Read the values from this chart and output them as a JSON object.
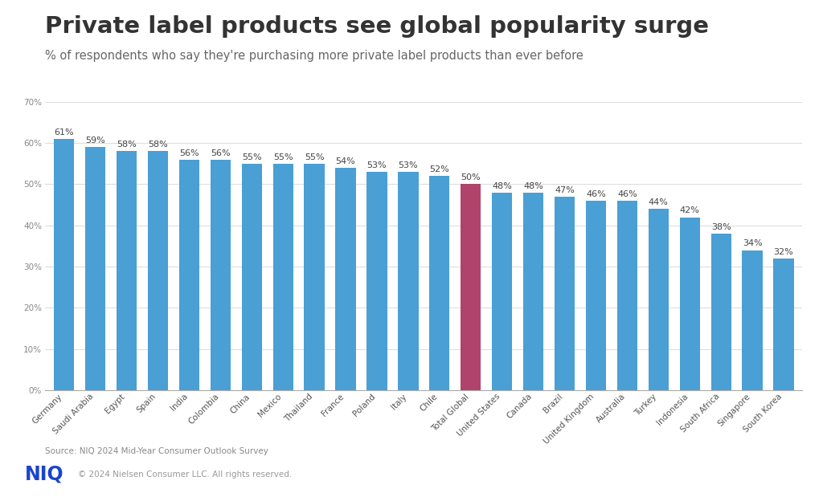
{
  "title": "Private label products see global popularity surge",
  "subtitle": "% of respondents who say they're purchasing more private label products than ever before",
  "source": "Source: NIQ 2024 Mid-Year Consumer Outlook Survey",
  "footer": "© 2024 Nielsen Consumer LLC. All rights reserved.",
  "categories": [
    "Germany",
    "Saudi Arabia",
    "Egypt",
    "Spain",
    "India",
    "Colombia",
    "China",
    "Mexico",
    "Thailand",
    "France",
    "Poland",
    "Italy",
    "Chile",
    "Total Global",
    "United States",
    "Canada",
    "Brazil",
    "United Kingdom",
    "Australia",
    "Turkey",
    "Indonesia",
    "South Africa",
    "Singapore",
    "South Korea"
  ],
  "values": [
    61,
    59,
    58,
    58,
    56,
    56,
    55,
    55,
    55,
    54,
    53,
    53,
    52,
    50,
    48,
    48,
    47,
    46,
    46,
    44,
    42,
    38,
    34,
    32
  ],
  "bar_colors": [
    "#4A9FD4",
    "#4A9FD4",
    "#4A9FD4",
    "#4A9FD4",
    "#4A9FD4",
    "#4A9FD4",
    "#4A9FD4",
    "#4A9FD4",
    "#4A9FD4",
    "#4A9FD4",
    "#4A9FD4",
    "#4A9FD4",
    "#4A9FD4",
    "#B0436A",
    "#4A9FD4",
    "#4A9FD4",
    "#4A9FD4",
    "#4A9FD4",
    "#4A9FD4",
    "#4A9FD4",
    "#4A9FD4",
    "#4A9FD4",
    "#4A9FD4",
    "#4A9FD4"
  ],
  "ylim": [
    0,
    70
  ],
  "yticks": [
    0,
    10,
    20,
    30,
    40,
    50,
    60,
    70
  ],
  "background_color": "#FFFFFF",
  "plot_area_color": "#FFFFFF",
  "grid_color": "#DDDDDD",
  "title_fontsize": 21,
  "subtitle_fontsize": 10.5,
  "label_fontsize": 8,
  "tick_fontsize": 7.5,
  "niq_color": "#1A44CC",
  "footer_bg": "#F2F2F2",
  "footer_sep_color": "#CCCCCC",
  "bottom_spine_color": "#AAAAAA"
}
